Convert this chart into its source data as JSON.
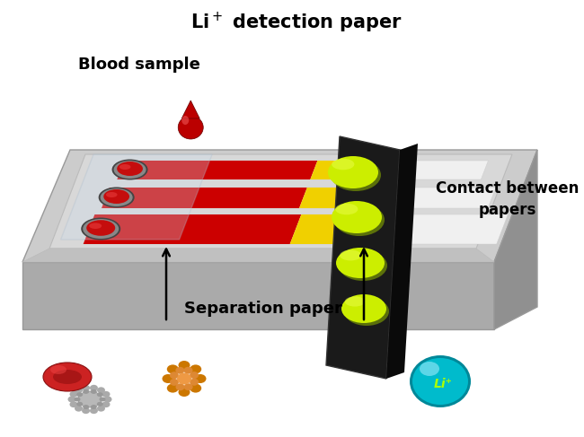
{
  "title": "Li⁺ detection paper",
  "blood_sample_label": "Blood sample",
  "separation_paper_label": "Separation paper",
  "contact_label": "Contact between\npapers",
  "li_label": "Li⁺",
  "background_color": "#ffffff",
  "platform_top_color": "#cccccc",
  "platform_front_color": "#aaaaaa",
  "platform_right_color": "#888888",
  "platform_edge": "#999999",
  "strip_red": "#cc0000",
  "strip_yellow": "#f0d000",
  "strip_bg": "#e0e0e0",
  "detection_paper_color": "#1a1a1a",
  "detection_paper_side": "#0a0a0a",
  "spot_color": "#ccee00",
  "spot_dark": "#88aa00",
  "blood_drop_color": "#bb0000",
  "rbc_color": "#cc2222",
  "platelet_color": "#aaaaaa",
  "bacteria_color": "#cc7700",
  "li_ball_color": "#00bbcc",
  "li_text_color": "#aaff00",
  "arrow_color": "#000000",
  "title_fontsize": 15,
  "label_fontsize": 13,
  "small_fontsize": 11,
  "contact_fontsize": 12
}
